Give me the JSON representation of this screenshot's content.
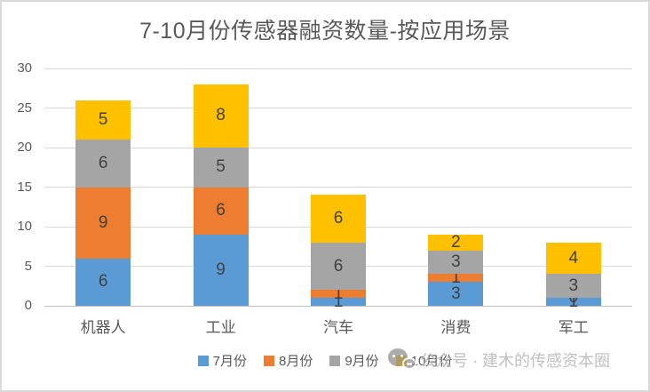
{
  "chart_data": {
    "type": "bar",
    "stacked": true,
    "title": "7-10月份传感器融资数量-按应用场景",
    "categories": [
      "机器人",
      "工业",
      "汽车",
      "消费",
      "军工"
    ],
    "series": [
      {
        "name": "7月份",
        "color": "#5B9BD5",
        "values": [
          6,
          9,
          1,
          3,
          1
        ]
      },
      {
        "name": "8月份",
        "color": "#ED7D31",
        "values": [
          9,
          6,
          1,
          1,
          0
        ]
      },
      {
        "name": "9月份",
        "color": "#A5A5A5",
        "values": [
          6,
          5,
          6,
          3,
          3
        ]
      },
      {
        "name": "10月份",
        "color": "#FFC000",
        "values": [
          5,
          8,
          6,
          2,
          4
        ]
      }
    ],
    "totals": [
      26,
      28,
      14,
      9,
      8
    ],
    "ylim": [
      0,
      30
    ],
    "yticks": [
      0,
      5,
      10,
      15,
      20,
      25,
      30
    ],
    "xlabel": "",
    "ylabel": "",
    "grid": true,
    "data_labels": true,
    "legend_position": "bottom",
    "gridline_color": "#d9d9d9",
    "axis_line_color": "#bfbfbf",
    "label_color": "#404040",
    "axis_text_color": "#595959"
  },
  "watermark": {
    "icon": "wechat-icon",
    "text": "公众号 · 建木的传感资本圈"
  }
}
